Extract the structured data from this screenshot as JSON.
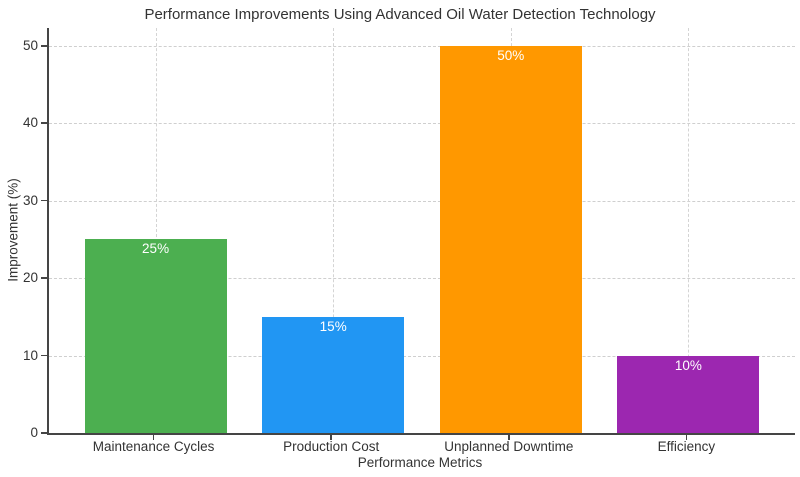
{
  "chart_data": {
    "type": "bar",
    "title": "Performance Improvements Using Advanced Oil Water Detection Technology",
    "xlabel": "Performance Metrics",
    "ylabel": "Improvement (%)",
    "categories": [
      "Maintenance Cycles",
      "Production Cost",
      "Unplanned Downtime",
      "Efficiency"
    ],
    "values": [
      25,
      15,
      50,
      10
    ],
    "value_labels": [
      "25%",
      "15%",
      "50%",
      "10%"
    ],
    "bar_colors": [
      "#4caf50",
      "#2196f3",
      "#ff9800",
      "#9c27b0"
    ],
    "yticks": [
      0,
      10,
      20,
      30,
      40,
      50
    ],
    "ylim": [
      0,
      52.3
    ],
    "xlim": [
      -0.6,
      3.6
    ],
    "bar_width_units": 0.8,
    "grid": "dashed",
    "grid_color": "#cfcfcf",
    "axis_color": "#454545",
    "text_color": "#333333",
    "bar_label_color": "#ffffff",
    "background_color": "#ffffff",
    "legend": "none"
  }
}
